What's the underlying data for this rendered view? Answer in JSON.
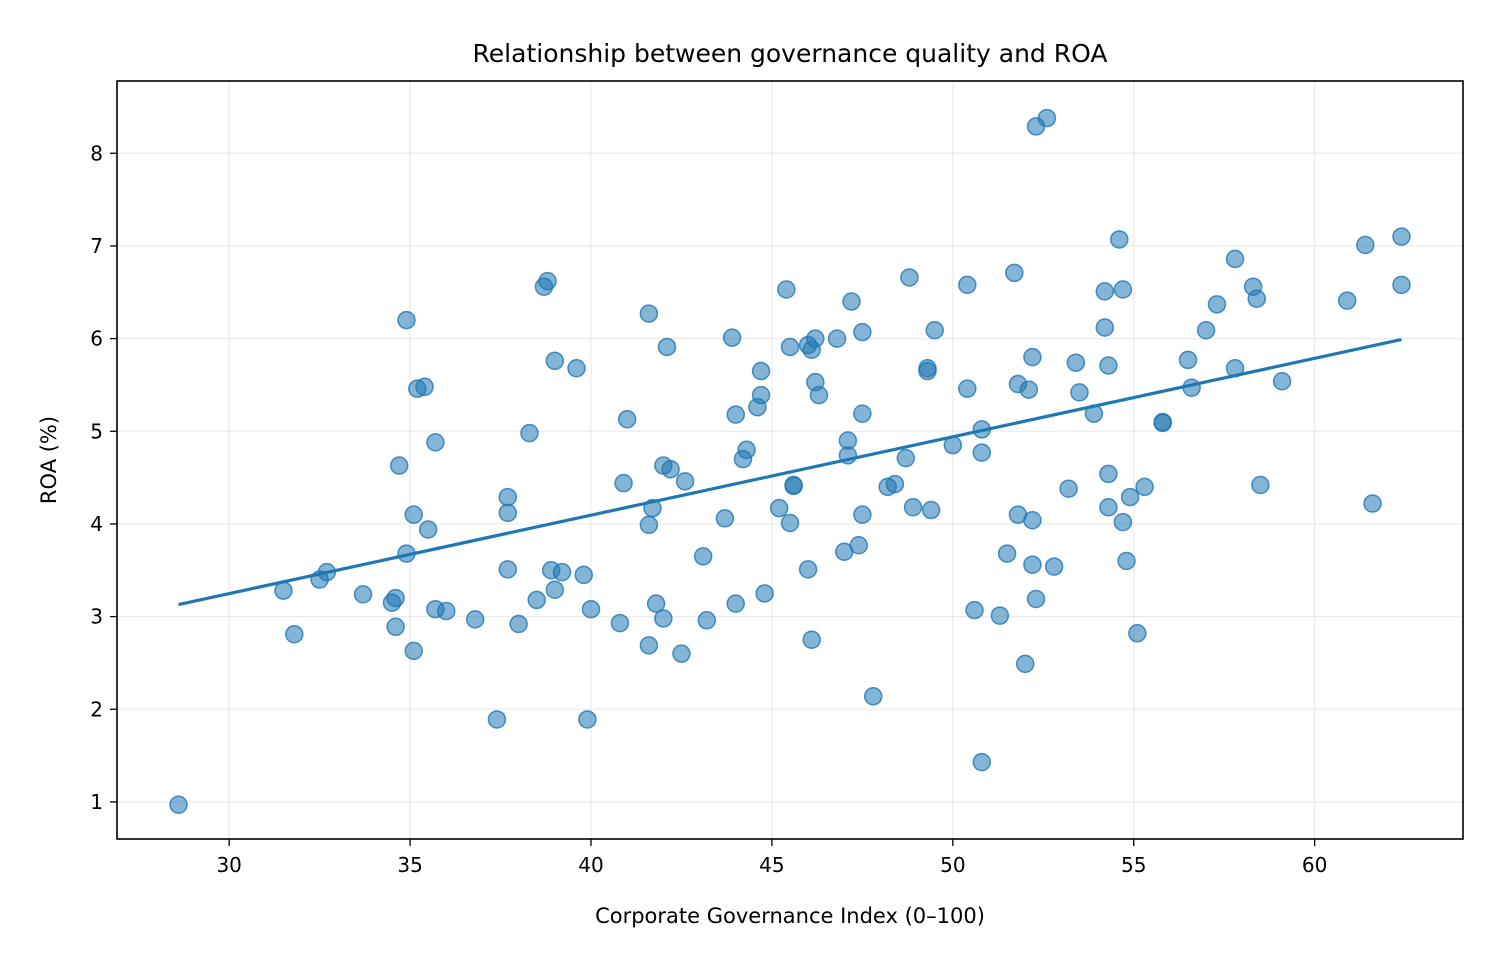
{
  "chart_data": {
    "type": "scatter",
    "title": "Relationship between governance quality and ROA",
    "xlabel": "Corporate Governance Index (0–100)",
    "ylabel": "ROA (%)",
    "xlim": [
      26.9,
      64.1
    ],
    "ylim": [
      0.6,
      8.78
    ],
    "xticks": [
      30,
      35,
      40,
      45,
      50,
      55,
      60
    ],
    "yticks": [
      1,
      2,
      3,
      4,
      5,
      6,
      7,
      8
    ],
    "grid": true,
    "points": [
      [
        28.6,
        0.97
      ],
      [
        31.5,
        3.28
      ],
      [
        31.8,
        2.81
      ],
      [
        32.5,
        3.4
      ],
      [
        32.7,
        3.48
      ],
      [
        33.7,
        3.24
      ],
      [
        34.5,
        3.15
      ],
      [
        34.6,
        3.2
      ],
      [
        34.6,
        2.89
      ],
      [
        34.7,
        4.63
      ],
      [
        34.9,
        3.68
      ],
      [
        34.9,
        6.2
      ],
      [
        35.1,
        4.1
      ],
      [
        35.1,
        2.63
      ],
      [
        35.2,
        5.46
      ],
      [
        35.4,
        5.48
      ],
      [
        35.5,
        3.94
      ],
      [
        35.7,
        4.88
      ],
      [
        35.7,
        3.08
      ],
      [
        36.0,
        3.06
      ],
      [
        36.8,
        2.97
      ],
      [
        37.4,
        1.89
      ],
      [
        37.7,
        4.29
      ],
      [
        37.7,
        4.12
      ],
      [
        37.7,
        3.51
      ],
      [
        38.0,
        2.92
      ],
      [
        38.3,
        4.98
      ],
      [
        38.5,
        3.18
      ],
      [
        38.7,
        6.56
      ],
      [
        38.8,
        6.62
      ],
      [
        38.9,
        3.5
      ],
      [
        39.0,
        5.76
      ],
      [
        39.0,
        3.29
      ],
      [
        39.2,
        3.48
      ],
      [
        39.6,
        5.68
      ],
      [
        39.8,
        3.45
      ],
      [
        39.9,
        1.89
      ],
      [
        40.0,
        3.08
      ],
      [
        40.8,
        2.93
      ],
      [
        40.9,
        4.44
      ],
      [
        41.0,
        5.13
      ],
      [
        41.6,
        6.27
      ],
      [
        41.6,
        2.69
      ],
      [
        41.6,
        3.99
      ],
      [
        41.7,
        4.17
      ],
      [
        41.8,
        3.14
      ],
      [
        42.0,
        2.98
      ],
      [
        42.0,
        4.63
      ],
      [
        42.1,
        5.91
      ],
      [
        42.2,
        4.59
      ],
      [
        42.5,
        2.6
      ],
      [
        42.6,
        4.46
      ],
      [
        43.1,
        3.65
      ],
      [
        43.2,
        2.96
      ],
      [
        43.7,
        4.06
      ],
      [
        43.9,
        6.01
      ],
      [
        44.0,
        5.18
      ],
      [
        44.0,
        3.14
      ],
      [
        44.2,
        4.7
      ],
      [
        44.3,
        4.8
      ],
      [
        44.6,
        5.26
      ],
      [
        44.7,
        5.65
      ],
      [
        44.7,
        5.39
      ],
      [
        44.8,
        3.25
      ],
      [
        45.2,
        4.17
      ],
      [
        45.4,
        6.53
      ],
      [
        45.5,
        5.91
      ],
      [
        45.5,
        4.01
      ],
      [
        45.6,
        4.42
      ],
      [
        45.6,
        4.41
      ],
      [
        46.0,
        3.51
      ],
      [
        46.0,
        5.93
      ],
      [
        46.1,
        5.88
      ],
      [
        46.1,
        2.75
      ],
      [
        46.2,
        5.53
      ],
      [
        46.2,
        6.0
      ],
      [
        46.3,
        5.39
      ],
      [
        46.8,
        6.0
      ],
      [
        47.0,
        3.7
      ],
      [
        47.1,
        4.9
      ],
      [
        47.1,
        4.74
      ],
      [
        47.2,
        6.4
      ],
      [
        47.4,
        3.77
      ],
      [
        47.5,
        5.19
      ],
      [
        47.5,
        4.1
      ],
      [
        47.5,
        6.07
      ],
      [
        47.8,
        2.14
      ],
      [
        48.2,
        4.4
      ],
      [
        48.4,
        4.43
      ],
      [
        48.7,
        4.71
      ],
      [
        48.8,
        6.66
      ],
      [
        48.9,
        4.18
      ],
      [
        49.3,
        5.65
      ],
      [
        49.3,
        5.68
      ],
      [
        49.4,
        4.15
      ],
      [
        49.5,
        6.09
      ],
      [
        50.0,
        4.85
      ],
      [
        50.4,
        6.58
      ],
      [
        50.4,
        5.46
      ],
      [
        50.6,
        3.07
      ],
      [
        50.8,
        4.77
      ],
      [
        50.8,
        5.02
      ],
      [
        50.8,
        1.43
      ],
      [
        51.3,
        3.01
      ],
      [
        51.5,
        3.68
      ],
      [
        51.7,
        6.71
      ],
      [
        51.8,
        4.1
      ],
      [
        51.8,
        5.51
      ],
      [
        52.0,
        2.49
      ],
      [
        52.1,
        5.45
      ],
      [
        52.2,
        4.04
      ],
      [
        52.2,
        5.8
      ],
      [
        52.2,
        3.56
      ],
      [
        52.3,
        3.19
      ],
      [
        52.3,
        8.29
      ],
      [
        52.6,
        8.38
      ],
      [
        52.8,
        3.54
      ],
      [
        53.2,
        4.38
      ],
      [
        53.4,
        5.74
      ],
      [
        53.5,
        5.42
      ],
      [
        53.9,
        5.19
      ],
      [
        54.2,
        6.12
      ],
      [
        54.2,
        6.51
      ],
      [
        54.3,
        5.71
      ],
      [
        54.3,
        4.54
      ],
      [
        54.3,
        4.18
      ],
      [
        54.6,
        7.07
      ],
      [
        54.7,
        6.53
      ],
      [
        54.7,
        4.02
      ],
      [
        54.8,
        3.6
      ],
      [
        54.9,
        4.29
      ],
      [
        55.1,
        2.82
      ],
      [
        55.3,
        4.4
      ],
      [
        55.8,
        5.1
      ],
      [
        55.8,
        5.09
      ],
      [
        56.5,
        5.77
      ],
      [
        56.6,
        5.47
      ],
      [
        57.0,
        6.09
      ],
      [
        57.3,
        6.37
      ],
      [
        57.8,
        6.86
      ],
      [
        57.8,
        5.68
      ],
      [
        58.3,
        6.56
      ],
      [
        58.4,
        6.43
      ],
      [
        58.5,
        4.42
      ],
      [
        59.1,
        5.54
      ],
      [
        60.9,
        6.41
      ],
      [
        61.4,
        7.01
      ],
      [
        61.6,
        4.22
      ],
      [
        62.4,
        6.58
      ],
      [
        62.4,
        7.1
      ]
    ],
    "trendline": {
      "x": [
        28.6,
        62.4
      ],
      "y": [
        3.13,
        5.99
      ]
    }
  }
}
